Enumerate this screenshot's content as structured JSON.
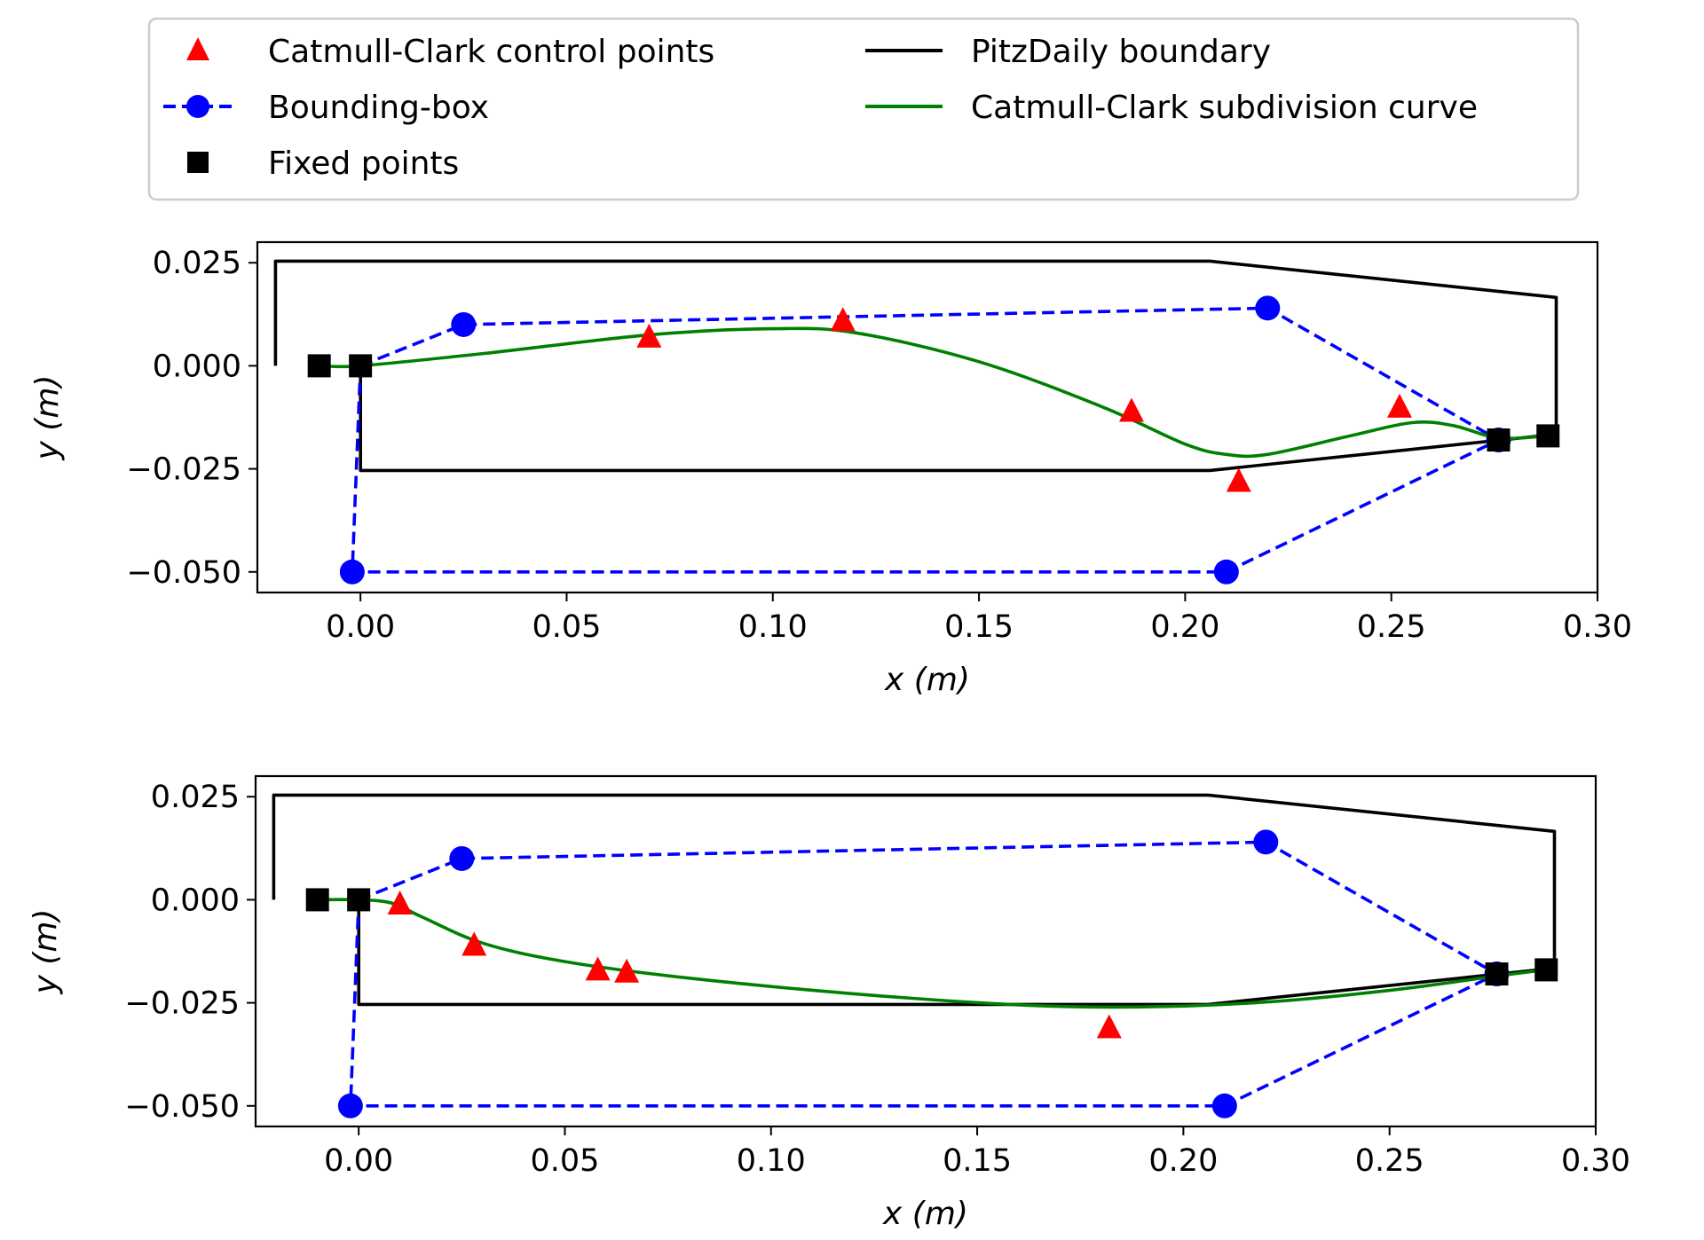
{
  "legend": {
    "entries": [
      {
        "label": "Catmull-Clark control points",
        "kind": "triangle",
        "color": "#ff0000"
      },
      {
        "label": "Bounding-box",
        "kind": "dashed-circle",
        "color": "#0000ff"
      },
      {
        "label": "Fixed points",
        "kind": "square",
        "color": "#000000"
      },
      {
        "label": "PitzDaily boundary",
        "kind": "line",
        "color": "#000000"
      },
      {
        "label": "Catmull-Clark subdivision curve",
        "kind": "line",
        "color": "#008000"
      }
    ]
  },
  "chart_data": [
    {
      "type": "line",
      "xlabel": "x (m)",
      "ylabel": "y (m)",
      "xlim": [
        -0.025,
        0.3
      ],
      "ylim": [
        -0.055,
        0.03
      ],
      "xticks": [
        0.0,
        0.05,
        0.1,
        0.15,
        0.2,
        0.25,
        0.3
      ],
      "xtick_labels": [
        "0.00",
        "0.05",
        "0.10",
        "0.15",
        "0.20",
        "0.25",
        "0.30"
      ],
      "yticks": [
        0.025,
        0.0,
        -0.025,
        -0.05
      ],
      "ytick_labels": [
        "0.025",
        "0.000",
        "−0.025",
        "−0.050"
      ],
      "boundary": [
        [
          -0.0206,
          0.0
        ],
        [
          -0.0206,
          0.0254
        ],
        [
          0.206,
          0.0254
        ],
        [
          0.29,
          0.0166
        ],
        [
          0.29,
          -0.0166
        ],
        [
          0.206,
          -0.0254
        ],
        [
          0.0,
          -0.0254
        ],
        [
          0.0,
          0.0
        ]
      ],
      "bounding_box": [
        [
          0.0,
          0.0
        ],
        [
          0.025,
          0.01
        ],
        [
          0.22,
          0.014
        ],
        [
          0.276,
          -0.018
        ],
        [
          0.21,
          -0.05
        ],
        [
          -0.002,
          -0.05
        ],
        [
          0.0,
          0.0
        ]
      ],
      "fixed_points": [
        [
          -0.01,
          0.0
        ],
        [
          0.0,
          0.0
        ],
        [
          0.276,
          -0.018
        ],
        [
          0.288,
          -0.017
        ]
      ],
      "control_points": [
        [
          0.07,
          0.007
        ],
        [
          0.117,
          0.011
        ],
        [
          0.187,
          -0.011
        ],
        [
          0.213,
          -0.028
        ],
        [
          0.252,
          -0.01
        ]
      ],
      "subdivision_curve": [
        [
          -0.01,
          0.0
        ],
        [
          0.0,
          0.0
        ],
        [
          0.03,
          0.003
        ],
        [
          0.07,
          0.0075
        ],
        [
          0.1,
          0.009
        ],
        [
          0.12,
          0.008
        ],
        [
          0.15,
          0.001
        ],
        [
          0.18,
          -0.01
        ],
        [
          0.2,
          -0.019
        ],
        [
          0.21,
          -0.0215
        ],
        [
          0.22,
          -0.0215
        ],
        [
          0.24,
          -0.017
        ],
        [
          0.255,
          -0.0138
        ],
        [
          0.265,
          -0.0145
        ],
        [
          0.276,
          -0.0175
        ],
        [
          0.288,
          -0.017
        ]
      ]
    },
    {
      "type": "line",
      "xlabel": "x (m)",
      "ylabel": "y (m)",
      "xlim": [
        -0.025,
        0.3
      ],
      "ylim": [
        -0.055,
        0.03
      ],
      "xticks": [
        0.0,
        0.05,
        0.1,
        0.15,
        0.2,
        0.25,
        0.3
      ],
      "xtick_labels": [
        "0.00",
        "0.05",
        "0.10",
        "0.15",
        "0.20",
        "0.25",
        "0.30"
      ],
      "yticks": [
        0.025,
        0.0,
        -0.025,
        -0.05
      ],
      "ytick_labels": [
        "0.025",
        "0.000",
        "−0.025",
        "−0.050"
      ],
      "boundary": [
        [
          -0.0206,
          0.0
        ],
        [
          -0.0206,
          0.0254
        ],
        [
          0.206,
          0.0254
        ],
        [
          0.29,
          0.0166
        ],
        [
          0.29,
          -0.0166
        ],
        [
          0.206,
          -0.0254
        ],
        [
          0.0,
          -0.0254
        ],
        [
          0.0,
          0.0
        ]
      ],
      "bounding_box": [
        [
          0.0,
          0.0
        ],
        [
          0.025,
          0.01
        ],
        [
          0.22,
          0.014
        ],
        [
          0.276,
          -0.018
        ],
        [
          0.21,
          -0.05
        ],
        [
          -0.002,
          -0.05
        ],
        [
          0.0,
          0.0
        ]
      ],
      "fixed_points": [
        [
          -0.01,
          0.0
        ],
        [
          0.0,
          0.0
        ],
        [
          0.276,
          -0.018
        ],
        [
          0.288,
          -0.017
        ]
      ],
      "control_points": [
        [
          0.01,
          -0.001
        ],
        [
          0.028,
          -0.011
        ],
        [
          0.058,
          -0.017
        ],
        [
          0.065,
          -0.0175
        ],
        [
          0.182,
          -0.031
        ]
      ],
      "subdivision_curve": [
        [
          -0.01,
          0.0
        ],
        [
          0.0,
          0.0
        ],
        [
          0.008,
          -0.0008
        ],
        [
          0.015,
          -0.004
        ],
        [
          0.03,
          -0.0105
        ],
        [
          0.05,
          -0.015
        ],
        [
          0.08,
          -0.019
        ],
        [
          0.12,
          -0.0228
        ],
        [
          0.16,
          -0.0255
        ],
        [
          0.19,
          -0.026
        ],
        [
          0.22,
          -0.0248
        ],
        [
          0.25,
          -0.022
        ],
        [
          0.276,
          -0.0185
        ],
        [
          0.288,
          -0.017
        ]
      ]
    }
  ]
}
